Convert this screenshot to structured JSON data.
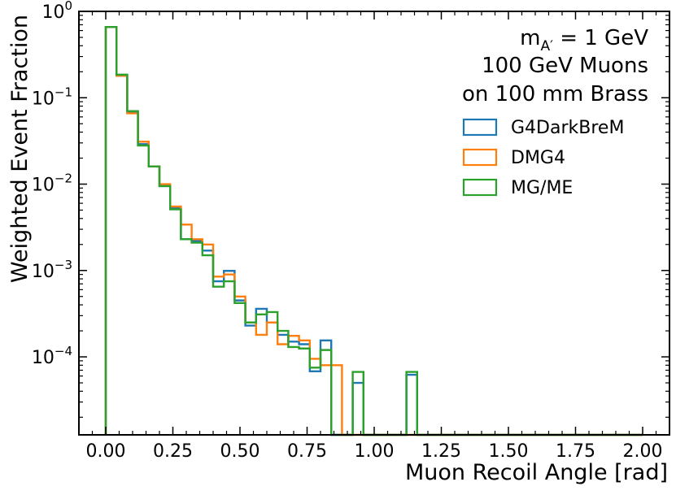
{
  "chart_data": {
    "type": "histogram",
    "title": "",
    "xlabel": "Muon Recoil Angle [rad]",
    "ylabel": "Weighted Event Fraction",
    "xlim": [
      -0.1,
      2.1
    ],
    "ylim": [
      1.25e-05,
      1.0
    ],
    "yscale": "log",
    "bin_width": 0.04,
    "x_ticks": [
      {
        "value": 0.0,
        "label": "0.00"
      },
      {
        "value": 0.25,
        "label": "0.25"
      },
      {
        "value": 0.5,
        "label": "0.50"
      },
      {
        "value": 0.75,
        "label": "0.75"
      },
      {
        "value": 1.0,
        "label": "1.00"
      },
      {
        "value": 1.25,
        "label": "1.25"
      },
      {
        "value": 1.5,
        "label": "1.50"
      },
      {
        "value": 1.75,
        "label": "1.75"
      },
      {
        "value": 2.0,
        "label": "2.00"
      }
    ],
    "y_ticks": [
      {
        "value": 1,
        "base": "10",
        "exp": "0"
      },
      {
        "value": 0.1,
        "base": "10",
        "exp": "−1"
      },
      {
        "value": 0.01,
        "base": "10",
        "exp": "−2"
      },
      {
        "value": 0.001,
        "base": "10",
        "exp": "−3"
      },
      {
        "value": 0.0001,
        "base": "10",
        "exp": "−4"
      }
    ],
    "annotation": {
      "mass_prefix": "m",
      "mass_sub": "A′",
      "mass_suffix": " = 1 GeV",
      "line2": "100 GeV Muons",
      "line3": "on 100 mm Brass"
    },
    "legend_position": "top-right",
    "series": [
      {
        "name": "G4DarkBreM",
        "color": "#1f77b4",
        "values": [
          0.66,
          0.18,
          0.068,
          0.029,
          0.016,
          0.0095,
          0.0053,
          0.0023,
          0.0022,
          0.0017,
          0.00075,
          0.00099,
          0.00045,
          0.00023,
          0.00036,
          0.00025,
          0.00018,
          0.00015,
          0.00014,
          6.8e-05,
          0.000155,
          0,
          0,
          5e-05,
          0,
          0,
          0,
          0,
          6.2e-05,
          0,
          0,
          0,
          0,
          0,
          0,
          0,
          0,
          0,
          0,
          0,
          0,
          0,
          0,
          0,
          0,
          0,
          0,
          0,
          0,
          0
        ]
      },
      {
        "name": "DMG4",
        "color": "#ff7f0e",
        "values": [
          0.66,
          0.18,
          0.066,
          0.031,
          0.016,
          0.01,
          0.0055,
          0.0034,
          0.0023,
          0.002,
          0.00085,
          0.0009,
          0.0005,
          0.00025,
          0.00018,
          0.00025,
          0.00014,
          0.000175,
          0.000155,
          9.5e-05,
          8e-05,
          8e-05,
          0,
          0,
          0,
          0,
          0,
          0,
          0,
          0,
          0,
          0,
          0,
          0,
          0,
          0,
          0,
          0,
          0,
          0,
          0,
          0,
          0,
          0,
          0,
          0,
          0,
          0,
          0,
          0
        ]
      },
      {
        "name": "MG/ME",
        "color": "#2ca02c",
        "values": [
          0.66,
          0.185,
          0.07,
          0.028,
          0.016,
          0.0095,
          0.0051,
          0.0023,
          0.0021,
          0.0015,
          0.00065,
          0.00075,
          0.00042,
          0.00025,
          0.00031,
          0.00033,
          0.0002,
          0.00013,
          0.000125,
          7.5e-05,
          0.00012,
          0,
          0,
          6.7e-05,
          0,
          0,
          0,
          0,
          6.7e-05,
          0,
          0,
          0,
          0,
          0,
          0,
          0,
          0,
          0,
          0,
          0,
          0,
          0,
          0,
          0,
          0,
          0,
          0,
          0,
          0,
          0
        ]
      }
    ]
  }
}
